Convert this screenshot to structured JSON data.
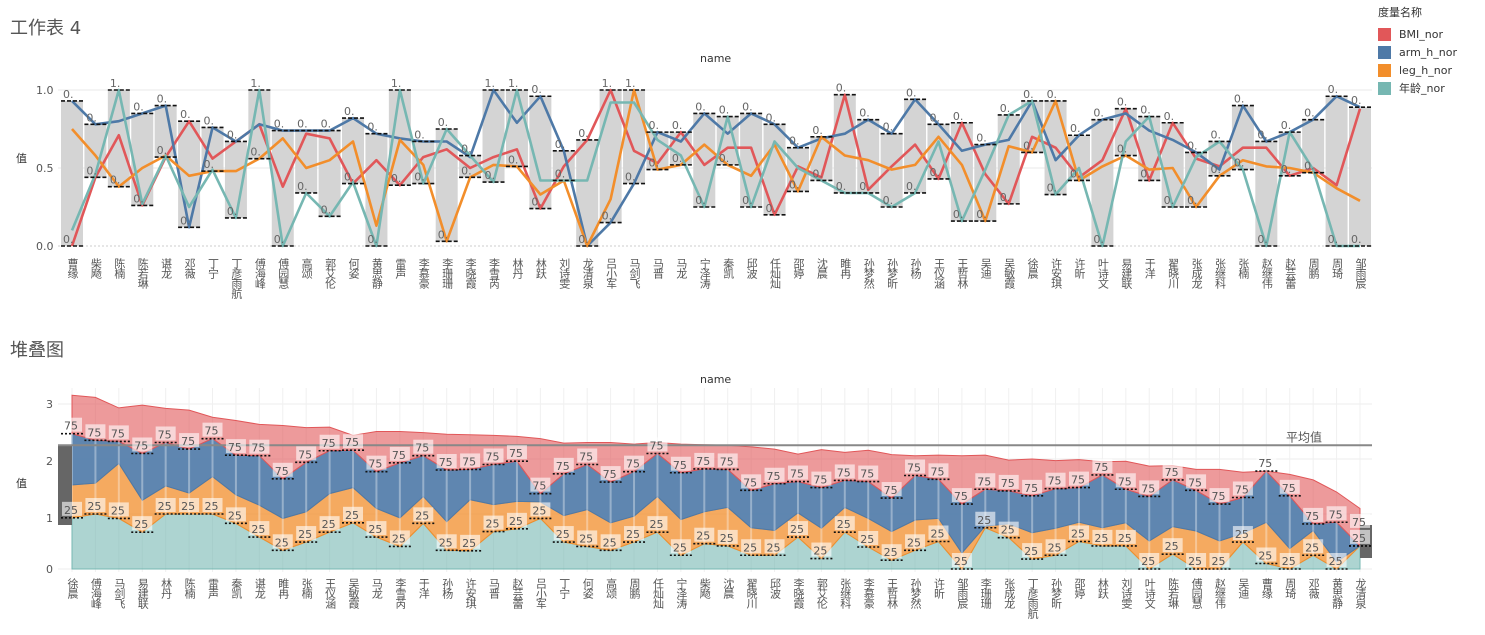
{
  "legend": {
    "title": "度量名称",
    "items": [
      {
        "label": "BMI_nor",
        "color": "#e15759"
      },
      {
        "label": "arm_h_nor",
        "color": "#4e79a7"
      },
      {
        "label": "leg_h_nor",
        "color": "#f28e2b"
      },
      {
        "label": "年龄_nor",
        "color": "#76b7b2"
      }
    ]
  },
  "chart_data": [
    {
      "sheet_title": "工作表 4",
      "type": "line",
      "xlabel": "name",
      "ylabel": "值",
      "ylim": [
        0,
        1.1
      ],
      "yticks": [
        "0.0",
        "0.5",
        "1.0"
      ],
      "grid": true,
      "legend": "right",
      "range_labels": {
        "one": "1.",
        "zero": "0."
      },
      "categories": [
        "曹缘",
        "柴飏",
        "陈楠",
        "陈若琳",
        "谌龙",
        "邓薇",
        "丁宁",
        "丁彦雨航",
        "傅海峰",
        "傅园慧",
        "高颂",
        "郭艾伦",
        "何姿",
        "黄思静",
        "雷声",
        "李慕豪",
        "李珊珊",
        "李晓霞",
        "李雪芮",
        "林丹",
        "林跃",
        "刘诗雯",
        "龙清泉",
        "吕小军",
        "马剑飞",
        "马晋",
        "马龙",
        "宁泽涛",
        "秦凯",
        "邱波",
        "任灿灿",
        "邵婷",
        "沈晨",
        "睢冉",
        "孙梦然",
        "孙梦昕",
        "孙杨",
        "王仪涵",
        "王哲林",
        "吴迪",
        "吴敏霞",
        "徐晨",
        "许安琪",
        "许昕",
        "叶诗文",
        "易建联",
        "于洋",
        "翟晓川",
        "张成龙",
        "张继科",
        "张楠",
        "赵继伟",
        "赵芸蕾",
        "周鹏",
        "周琦",
        "邹雨宸"
      ],
      "series": [
        {
          "name": "BMI_nor",
          "values": [
            0,
            0.44,
            0.71,
            0.26,
            0.57,
            0.8,
            0.56,
            0.67,
            0.78,
            0.38,
            0.72,
            0.69,
            0.4,
            0.55,
            0.39,
            0.57,
            0.62,
            0.5,
            0.57,
            0.62,
            0.24,
            0.51,
            0.68,
            1.0,
            0.61,
            0.53,
            0.73,
            0.52,
            0.63,
            0.63,
            0.2,
            0.51,
            0.44,
            0.97,
            0.36,
            0.51,
            0.65,
            0.43,
            0.79,
            0.46,
            0.27,
            0.7,
            0.63,
            0.44,
            0.55,
            0.88,
            0.42,
            0.79,
            0.56,
            0.51,
            0.63,
            0.63,
            0.45,
            0.5,
            0.39,
            0.88
          ]
        },
        {
          "name": "arm_h_nor",
          "values": [
            0.93,
            0.78,
            0.8,
            0.85,
            0.9,
            0.12,
            0.76,
            0.67,
            0.78,
            0.74,
            0.74,
            0.74,
            0.82,
            0.72,
            0.69,
            0.67,
            0.67,
            0.57,
            1.0,
            0.79,
            0.96,
            0.61,
            0.0,
            0.15,
            0.4,
            0.73,
            0.67,
            0.85,
            0.72,
            0.85,
            0.78,
            0.63,
            0.69,
            0.72,
            0.81,
            0.72,
            0.94,
            0.78,
            0.61,
            0.65,
            0.68,
            0.93,
            0.55,
            0.71,
            0.81,
            0.85,
            0.74,
            0.68,
            0.6,
            0.49,
            0.9,
            0.67,
            0.73,
            0.81,
            0.96,
            0.89
          ]
        },
        {
          "name": "leg_h_nor",
          "values": [
            0.75,
            0.58,
            0.38,
            0.5,
            0.58,
            0.45,
            0.48,
            0.48,
            0.56,
            0.69,
            0.5,
            0.55,
            0.67,
            0.13,
            0.68,
            0.52,
            0.03,
            0.44,
            0.52,
            0.51,
            0.33,
            0.42,
            0.0,
            0.3,
            1.0,
            0.49,
            0.52,
            0.65,
            0.52,
            0.45,
            0.65,
            0.35,
            0.7,
            0.58,
            0.55,
            0.49,
            0.52,
            0.7,
            0.52,
            0.16,
            0.64,
            0.6,
            0.93,
            0.42,
            0.51,
            0.58,
            0.49,
            0.5,
            0.25,
            0.45,
            0.55,
            0.51,
            0.5,
            0.47,
            0.37,
            0.29
          ]
        },
        {
          "name": "年龄_nor",
          "values": [
            0.1,
            0.46,
            1.0,
            0.27,
            0.58,
            0.25,
            0.49,
            0.18,
            1.0,
            0,
            0.34,
            0.19,
            0.41,
            0,
            1.0,
            0.4,
            0.75,
            0.58,
            0.41,
            1.0,
            0.42,
            0.42,
            0.42,
            0.92,
            0.92,
            0.68,
            0.58,
            0.25,
            0.83,
            0.25,
            0.67,
            0.5,
            0.42,
            0.34,
            0.34,
            0.25,
            0.34,
            0.67,
            0.16,
            0.49,
            0.84,
            0.93,
            0.33,
            0.5,
            0,
            0.67,
            0.83,
            0.25,
            0.57,
            0.67,
            0.49,
            0,
            0.73,
            0.49,
            0,
            0
          ]
        }
      ]
    },
    {
      "sheet_title": "堆叠图",
      "type": "area",
      "stacked": true,
      "xlabel": "name",
      "ylabel": "值",
      "yticks": [
        "0",
        "1",
        "2",
        "3"
      ],
      "ylim": [
        0,
        3.3
      ],
      "grid": true,
      "average_label": "平均值",
      "average_value": 2.25,
      "percentile_labels": [
        "25",
        "75"
      ],
      "stack_order": [
        "年龄_nor",
        "leg_h_nor",
        "arm_h_nor",
        "BMI_nor"
      ],
      "categories": [
        "徐晨",
        "傅海峰",
        "马剑飞",
        "易建联",
        "林丹",
        "陈楠",
        "雷声",
        "秦凯",
        "谌龙",
        "睢冉",
        "张楠",
        "王仪涵",
        "吴敏霞",
        "马龙",
        "李雪芮",
        "于洋",
        "孙杨",
        "许安琪",
        "马晋",
        "赵芸蕾",
        "吕小军",
        "丁宁",
        "何姿",
        "高颂",
        "周鹏",
        "任灿灿",
        "宁泽涛",
        "柴飏",
        "沈晨",
        "翟晓川",
        "邱波",
        "李晓霞",
        "郭艾伦",
        "张继科",
        "李慕豪",
        "王哲林",
        "孙梦然",
        "许昕",
        "邹雨宸",
        "李珊珊",
        "张成龙",
        "丁彦雨航",
        "孙梦昕",
        "邵婷",
        "林跃",
        "刘诗雯",
        "叶诗文",
        "陈若琳",
        "傅园慧",
        "赵继伟",
        "吴迪",
        "曹缘",
        "周琦",
        "邓薇",
        "黄思静",
        "龙清泉"
      ]
    }
  ]
}
